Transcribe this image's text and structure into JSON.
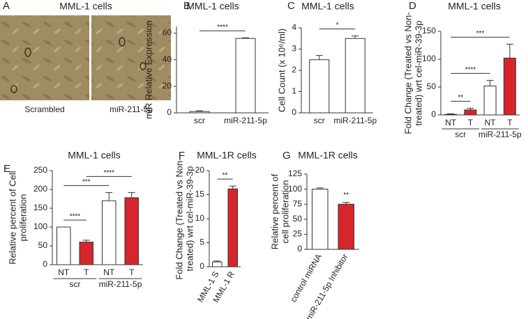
{
  "image_panel": {
    "letter": "A",
    "title": "MML-1 cells",
    "captions": [
      "Scrambled",
      "miR-211-5p"
    ]
  },
  "chart_data": [
    {
      "type": "bar",
      "letter": "B",
      "title": "MML-1 cells",
      "ylabel": "miR Relative Expression",
      "categories": [
        "scr",
        "miR-211-5p"
      ],
      "values": [
        1,
        56
      ],
      "errors": [
        0.5,
        0.5
      ],
      "colors": [
        "#ffffff",
        "#ffffff"
      ],
      "ylim": [
        0,
        65
      ],
      "yticks": [
        0,
        20,
        40,
        60
      ],
      "significance": [
        {
          "label": "****",
          "pair": [
            0,
            1
          ]
        }
      ]
    },
    {
      "type": "bar",
      "letter": "C",
      "title": "MML-1 cells",
      "ylabel": "Cell Count (x 10⁶/ml)",
      "categories": [
        "scr",
        "miR-211-5p"
      ],
      "values": [
        2.5,
        3.5
      ],
      "errors": [
        0.2,
        0.12
      ],
      "colors": [
        "#ffffff",
        "#ffffff"
      ],
      "ylim": [
        0,
        4
      ],
      "yticks": [
        0,
        1,
        2,
        3,
        4
      ],
      "significance": [
        {
          "label": "*",
          "pair": [
            0,
            1
          ]
        }
      ]
    },
    {
      "type": "bar",
      "letter": "D",
      "title": "MML-1 cells",
      "ylabel": [
        "Fold Change (Treated vs Non-",
        "treated) wrt cel-miR-39-3p"
      ],
      "categories": [
        "NT",
        "T",
        "NT",
        "T"
      ],
      "groups": [
        "scr",
        "miR-211-5p"
      ],
      "values": [
        1,
        9,
        52,
        102
      ],
      "errors": [
        1,
        3,
        10,
        25
      ],
      "colors": [
        "#ffffff",
        "#d7262b",
        "#ffffff",
        "#d7262b"
      ],
      "ylim": [
        0,
        150
      ],
      "yticks": [
        0,
        50,
        100,
        150
      ],
      "significance": [
        {
          "label": "**",
          "pair": [
            0,
            1
          ]
        },
        {
          "label": "****",
          "pair": [
            0,
            2
          ]
        },
        {
          "label": "***",
          "pair": [
            0,
            3
          ]
        }
      ]
    },
    {
      "type": "bar",
      "letter": "E",
      "title": "MML-1 cells",
      "ylabel": [
        "Relative percent of Cell",
        "proliferation"
      ],
      "categories": [
        "NT",
        "T",
        "NT",
        "T"
      ],
      "groups": [
        "scr",
        "miR-211-5p"
      ],
      "values": [
        100,
        60,
        170,
        178
      ],
      "errors": [
        0,
        5,
        22,
        14
      ],
      "colors": [
        "#ffffff",
        "#d7262b",
        "#ffffff",
        "#d7262b"
      ],
      "ylim": [
        0,
        250
      ],
      "yticks": [
        0,
        50,
        100,
        150,
        200,
        250
      ],
      "significance": [
        {
          "label": "****",
          "pair": [
            0,
            1
          ]
        },
        {
          "label": "***",
          "pair": [
            0,
            2
          ]
        },
        {
          "label": "****",
          "pair": [
            1,
            3
          ]
        }
      ]
    },
    {
      "type": "bar",
      "letter": "F",
      "title": "MML-1R cells",
      "ylabel": [
        "Fold Change (Treated vs Non-",
        "treated) wrt cel-miR-39-3p"
      ],
      "categories": [
        "MML-1 S",
        "MML-1 R"
      ],
      "rotate_labels": true,
      "values": [
        1,
        16.2
      ],
      "errors": [
        0.2,
        0.6
      ],
      "colors": [
        "#ffffff",
        "#d7262b"
      ],
      "ylim": [
        0,
        20
      ],
      "yticks": [
        0,
        5,
        10,
        15,
        20
      ],
      "significance": [
        {
          "label": "**",
          "pair": [
            0,
            1
          ]
        }
      ]
    },
    {
      "type": "bar",
      "letter": "G",
      "title": "MML-1R cells",
      "ylabel": [
        "Relative percent of",
        "cell proliferation"
      ],
      "categories": [
        "control miRNA",
        "miR-211-5p Inhibitor"
      ],
      "rotate_labels": true,
      "values": [
        100,
        75
      ],
      "errors": [
        2,
        3
      ],
      "colors": [
        "#ffffff",
        "#d7262b"
      ],
      "ylim": [
        0,
        125
      ],
      "yticks": [
        0,
        25,
        50,
        75,
        100,
        125
      ],
      "significance": [
        {
          "label": "**",
          "pair": [
            1
          ]
        }
      ]
    }
  ]
}
